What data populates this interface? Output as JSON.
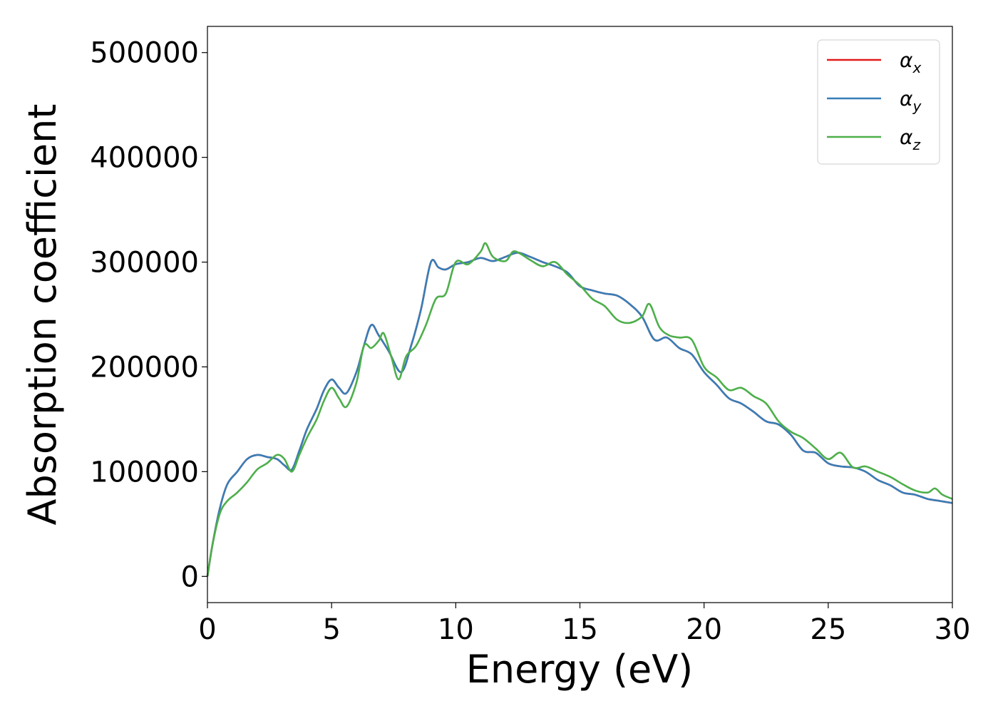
{
  "chart_data": {
    "type": "line",
    "xlabel": "Energy (eV)",
    "ylabel": "Absorption coefficient",
    "xlim": [
      0,
      30
    ],
    "ylim": [
      -25000,
      525000
    ],
    "xticks": [
      0,
      5,
      10,
      15,
      20,
      25,
      30
    ],
    "yticks": [
      0,
      100000,
      200000,
      300000,
      400000,
      500000
    ],
    "grid": false,
    "legend_position": "top-right",
    "series": [
      {
        "name": "α_x",
        "legend_main": "α",
        "legend_sub": "x",
        "color": "#e41a1c",
        "x": [
          0,
          0.2,
          0.5,
          0.8,
          1.2,
          1.6,
          2.0,
          2.4,
          2.8,
          3.1,
          3.4,
          3.7,
          4.0,
          4.4,
          4.7,
          5.0,
          5.3,
          5.6,
          6.0,
          6.3,
          6.6,
          6.9,
          7.3,
          7.8,
          8.2,
          8.6,
          9.0,
          9.3,
          9.6,
          10.0,
          10.5,
          11.0,
          11.5,
          12.0,
          12.5,
          13.0,
          13.5,
          14.0,
          14.5,
          15.0,
          15.5,
          16.0,
          16.5,
          17.0,
          17.5,
          18.0,
          18.5,
          19.0,
          19.5,
          20.0,
          20.5,
          21.0,
          21.5,
          22.0,
          22.5,
          23.0,
          23.5,
          24.0,
          24.5,
          25.0,
          25.5,
          26.0,
          26.5,
          27.0,
          27.5,
          28.0,
          28.5,
          29.0,
          29.5,
          30.0
        ],
        "y": [
          0,
          30000,
          65000,
          88000,
          100000,
          112000,
          116000,
          114000,
          112000,
          106000,
          102000,
          120000,
          140000,
          160000,
          178000,
          188000,
          180000,
          175000,
          195000,
          220000,
          240000,
          230000,
          215000,
          195000,
          220000,
          255000,
          300000,
          295000,
          293000,
          298000,
          300000,
          304000,
          301000,
          305000,
          309000,
          305000,
          300000,
          296000,
          290000,
          277000,
          273000,
          270000,
          268000,
          260000,
          248000,
          226000,
          228000,
          218000,
          212000,
          195000,
          183000,
          170000,
          165000,
          157000,
          148000,
          145000,
          135000,
          120000,
          118000,
          108000,
          105000,
          104000,
          100000,
          92000,
          87000,
          80000,
          78000,
          74000,
          72000,
          70000
        ]
      },
      {
        "name": "α_y",
        "legend_main": "α",
        "legend_sub": "y",
        "color": "#377eb8",
        "x": [
          0,
          0.2,
          0.5,
          0.8,
          1.2,
          1.6,
          2.0,
          2.4,
          2.8,
          3.1,
          3.4,
          3.7,
          4.0,
          4.4,
          4.7,
          5.0,
          5.3,
          5.6,
          6.0,
          6.3,
          6.6,
          6.9,
          7.3,
          7.8,
          8.2,
          8.6,
          9.0,
          9.3,
          9.6,
          10.0,
          10.5,
          11.0,
          11.5,
          12.0,
          12.5,
          13.0,
          13.5,
          14.0,
          14.5,
          15.0,
          15.5,
          16.0,
          16.5,
          17.0,
          17.5,
          18.0,
          18.5,
          19.0,
          19.5,
          20.0,
          20.5,
          21.0,
          21.5,
          22.0,
          22.5,
          23.0,
          23.5,
          24.0,
          24.5,
          25.0,
          25.5,
          26.0,
          26.5,
          27.0,
          27.5,
          28.0,
          28.5,
          29.0,
          29.5,
          30.0
        ],
        "y": [
          0,
          30000,
          65000,
          88000,
          100000,
          112000,
          116000,
          114000,
          112000,
          106000,
          102000,
          120000,
          140000,
          160000,
          178000,
          188000,
          180000,
          175000,
          195000,
          220000,
          240000,
          230000,
          215000,
          195000,
          220000,
          255000,
          300000,
          295000,
          293000,
          298000,
          300000,
          304000,
          301000,
          305000,
          309000,
          305000,
          300000,
          296000,
          290000,
          277000,
          273000,
          270000,
          268000,
          260000,
          248000,
          226000,
          228000,
          218000,
          212000,
          195000,
          183000,
          170000,
          165000,
          157000,
          148000,
          145000,
          135000,
          120000,
          118000,
          108000,
          105000,
          104000,
          100000,
          92000,
          87000,
          80000,
          78000,
          74000,
          72000,
          70000
        ]
      },
      {
        "name": "α_z",
        "legend_main": "α",
        "legend_sub": "z",
        "color": "#4daf4a",
        "x": [
          0,
          0.2,
          0.5,
          0.8,
          1.2,
          1.6,
          2.0,
          2.4,
          2.8,
          3.1,
          3.4,
          3.7,
          4.0,
          4.4,
          4.7,
          5.0,
          5.3,
          5.6,
          6.0,
          6.3,
          6.6,
          6.9,
          7.1,
          7.4,
          7.7,
          8.0,
          8.4,
          8.8,
          9.2,
          9.6,
          10.0,
          10.5,
          11.0,
          11.2,
          11.5,
          12.0,
          12.3,
          12.6,
          13.0,
          13.5,
          14.0,
          14.5,
          15.0,
          15.5,
          16.0,
          16.5,
          17.0,
          17.5,
          17.8,
          18.2,
          18.6,
          19.0,
          19.5,
          20.0,
          20.5,
          21.0,
          21.5,
          22.0,
          22.5,
          23.0,
          23.5,
          24.0,
          24.5,
          25.0,
          25.5,
          26.0,
          26.5,
          27.0,
          27.5,
          28.0,
          28.5,
          29.0,
          29.3,
          29.6,
          30.0
        ],
        "y": [
          0,
          30000,
          60000,
          72000,
          80000,
          90000,
          102000,
          108000,
          116000,
          112000,
          100000,
          116000,
          132000,
          150000,
          168000,
          180000,
          170000,
          162000,
          185000,
          220000,
          218000,
          225000,
          232000,
          210000,
          188000,
          210000,
          220000,
          240000,
          265000,
          270000,
          300000,
          298000,
          310000,
          318000,
          305000,
          301000,
          310000,
          308000,
          302000,
          296000,
          300000,
          288000,
          278000,
          265000,
          258000,
          245000,
          242000,
          248000,
          260000,
          238000,
          230000,
          228000,
          226000,
          200000,
          190000,
          178000,
          180000,
          172000,
          165000,
          148000,
          138000,
          132000,
          122000,
          112000,
          118000,
          104000,
          105000,
          100000,
          95000,
          88000,
          82000,
          80000,
          84000,
          78000,
          74000
        ]
      }
    ]
  }
}
